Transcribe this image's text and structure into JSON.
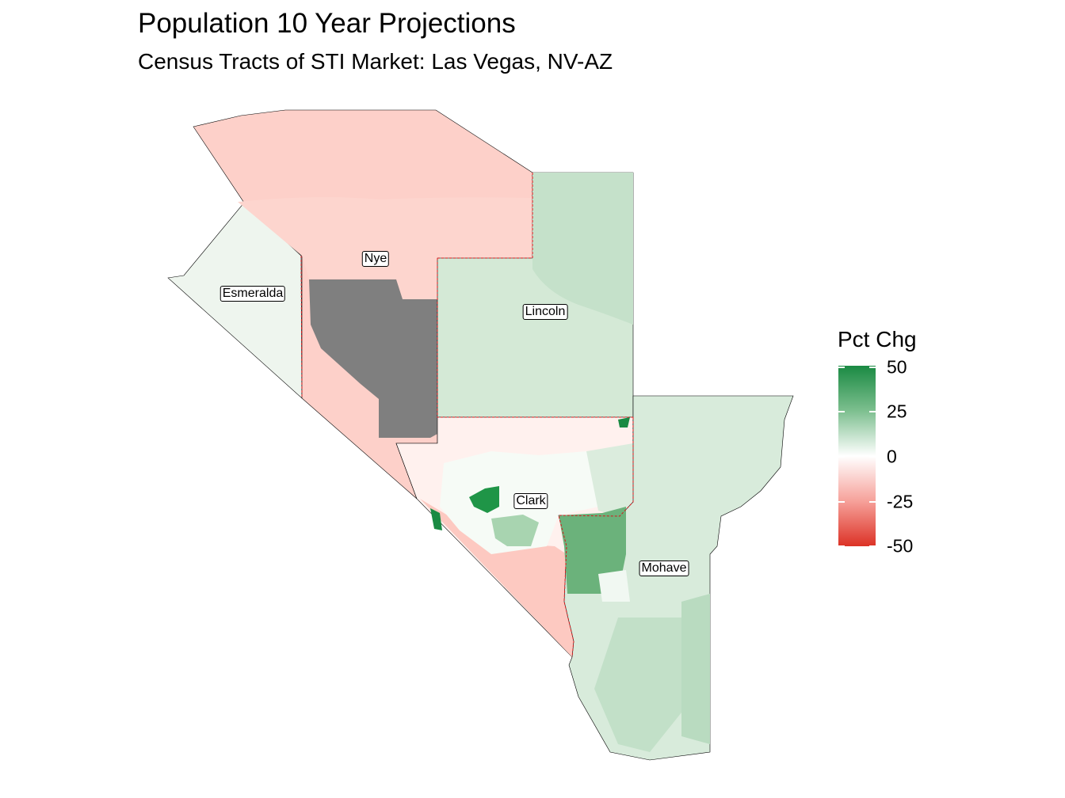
{
  "title": "Population 10 Year Projections",
  "subtitle": "Census Tracts of STI Market: Las Vegas, NV-AZ",
  "legend": {
    "title": "Pct Chg",
    "ticks": [
      {
        "label": "50",
        "value": 50
      },
      {
        "label": "25",
        "value": 25
      },
      {
        "label": "0",
        "value": 0
      },
      {
        "label": "-25",
        "value": -25
      },
      {
        "label": "-50",
        "value": -50
      }
    ],
    "colors": {
      "high": "#1a8a43",
      "mid": "#ffffff",
      "low": "#dc3226",
      "missing": "#7f7f7f"
    }
  },
  "counties": [
    {
      "name": "Nye"
    },
    {
      "name": "Esmeralda"
    },
    {
      "name": "Lincoln"
    },
    {
      "name": "Clark"
    },
    {
      "name": "Mohave"
    }
  ]
}
